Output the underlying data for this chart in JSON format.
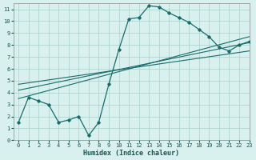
{
  "xlabel": "Humidex (Indice chaleur)",
  "bg_color": "#d8f0ee",
  "grid_color": "#a8cfc8",
  "line_color": "#1a6b6b",
  "xlim": [
    -0.5,
    23
  ],
  "ylim": [
    0,
    11.5
  ],
  "xticks": [
    0,
    1,
    2,
    3,
    4,
    5,
    6,
    7,
    8,
    9,
    10,
    11,
    12,
    13,
    14,
    15,
    16,
    17,
    18,
    19,
    20,
    21,
    22,
    23
  ],
  "yticks": [
    0,
    1,
    2,
    3,
    4,
    5,
    6,
    7,
    8,
    9,
    10,
    11
  ],
  "curve_x": [
    0,
    1,
    2,
    3,
    4,
    5,
    6,
    7,
    8,
    9,
    10,
    11,
    12,
    13,
    14,
    15,
    16,
    17,
    18,
    19,
    20,
    21,
    22,
    23
  ],
  "curve_y": [
    1.5,
    3.6,
    3.3,
    3.0,
    1.5,
    1.7,
    2.0,
    0.4,
    1.5,
    4.7,
    7.6,
    10.2,
    10.3,
    11.3,
    11.2,
    10.7,
    10.3,
    9.9,
    9.3,
    8.7,
    7.8,
    7.5,
    8.0,
    8.3
  ],
  "line1_x": [
    0,
    23
  ],
  "line1_y": [
    3.5,
    8.7
  ],
  "line2_x": [
    0,
    23
  ],
  "line2_y": [
    4.2,
    8.2
  ],
  "line3_x": [
    0,
    23
  ],
  "line3_y": [
    4.7,
    7.5
  ]
}
